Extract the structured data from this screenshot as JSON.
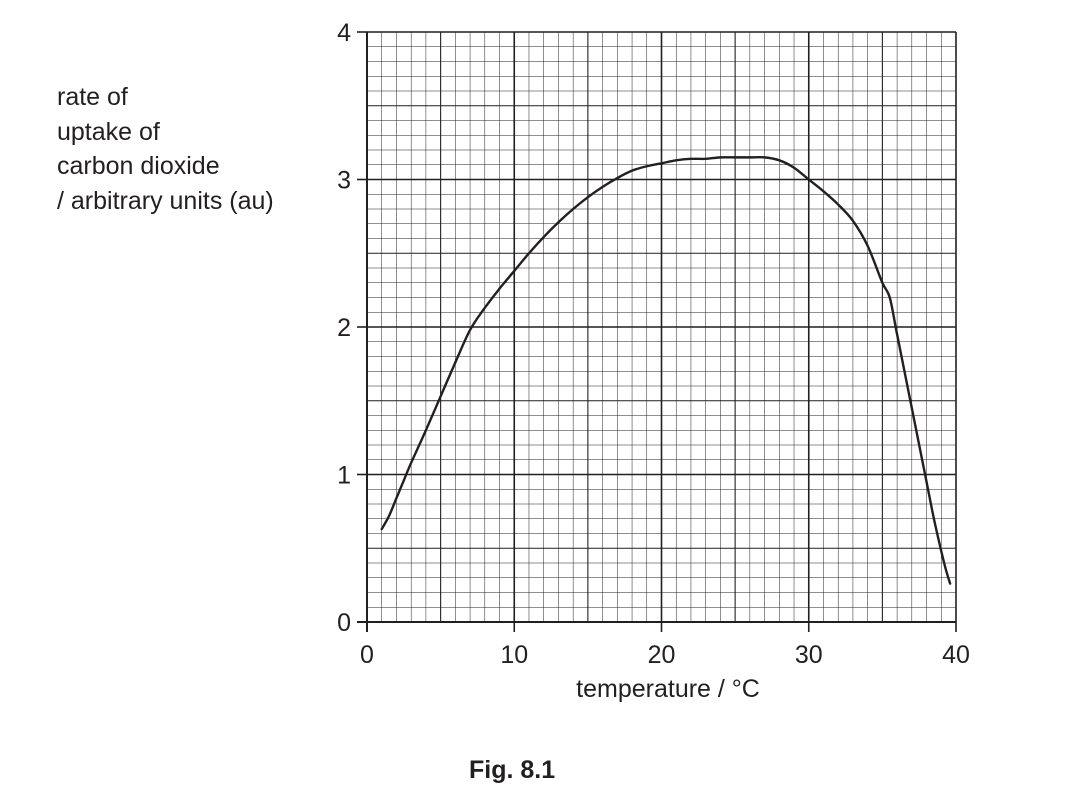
{
  "figure": {
    "caption": "Fig. 8.1"
  },
  "chart_data": {
    "type": "line",
    "xlabel": "temperature / °C",
    "ylabel_lines": [
      "rate of",
      "uptake of",
      "carbon dioxide",
      "/ arbitrary units (au)"
    ],
    "xlim": [
      0,
      40
    ],
    "ylim": [
      0,
      4
    ],
    "x_ticks": [
      0,
      10,
      20,
      30,
      40
    ],
    "x_tick_labels": [
      "0",
      "10",
      "20",
      "30",
      "40"
    ],
    "y_ticks": [
      0,
      1,
      2,
      3,
      4
    ],
    "y_tick_labels": [
      "0",
      "1",
      "2",
      "3",
      "4"
    ],
    "grid": true,
    "grid_minor_x": 1,
    "grid_minor_y": 0.1,
    "grid_mid_x": 5,
    "grid_mid_y": 0.5,
    "series": [
      {
        "x": [
          1,
          1.5,
          2,
          2.5,
          3,
          4,
          5,
          6,
          7,
          8,
          9,
          10,
          11,
          12,
          13,
          14,
          15,
          16,
          17,
          18,
          19,
          20,
          21,
          22,
          23,
          24,
          25,
          26,
          27,
          28,
          29,
          30,
          31,
          32,
          33,
          34,
          35,
          35.5,
          36,
          37,
          38,
          38.5,
          39,
          39.3,
          39.6
        ],
        "y": [
          0.63,
          0.72,
          0.84,
          0.96,
          1.08,
          1.3,
          1.53,
          1.76,
          1.98,
          2.13,
          2.26,
          2.38,
          2.5,
          2.61,
          2.71,
          2.8,
          2.88,
          2.95,
          3.01,
          3.06,
          3.09,
          3.11,
          3.13,
          3.14,
          3.14,
          3.15,
          3.15,
          3.15,
          3.15,
          3.13,
          3.08,
          3.0,
          2.92,
          2.83,
          2.72,
          2.55,
          2.3,
          2.2,
          1.95,
          1.45,
          0.95,
          0.7,
          0.48,
          0.36,
          0.26
        ],
        "color": "#231f20"
      }
    ]
  }
}
